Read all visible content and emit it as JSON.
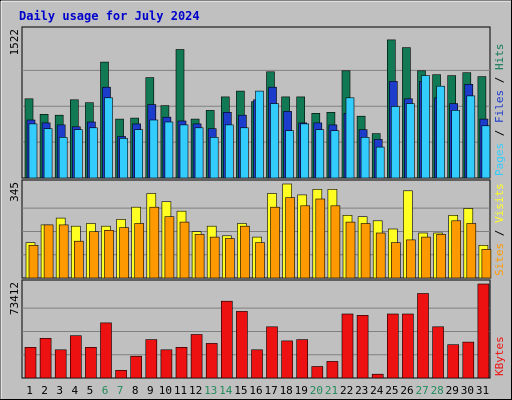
{
  "title": "Daily usage for July 2024",
  "colors": {
    "background": "#c0c0c0",
    "panel": "#c0c0c0",
    "grid": "#808080",
    "hits": "#117a55",
    "files": "#1c3ccc",
    "pages": "#33ccff",
    "visits": "#ffff22",
    "sites": "#ff9900",
    "kbytes": "#ee1111",
    "title": "#0000cc",
    "weekend": "#228b5a",
    "tick": "#000000"
  },
  "chart_data": [
    {
      "type": "bar",
      "panel": "hits-files-pages",
      "ymax_label": "1522",
      "ylim": [
        0,
        1522
      ],
      "categories": [
        "1",
        "2",
        "3",
        "4",
        "5",
        "6",
        "7",
        "8",
        "9",
        "10",
        "11",
        "12",
        "13",
        "14",
        "15",
        "16",
        "17",
        "18",
        "19",
        "20",
        "21",
        "22",
        "23",
        "24",
        "25",
        "26",
        "27",
        "28",
        "29",
        "30",
        "31"
      ],
      "legend": [
        "Pages",
        "Files",
        "Hits"
      ],
      "series": [
        {
          "name": "Hits",
          "values": [
            820,
            660,
            650,
            810,
            780,
            1200,
            610,
            620,
            1040,
            750,
            1330,
            610,
            700,
            840,
            900,
            790,
            1100,
            840,
            840,
            670,
            680,
            1110,
            640,
            460,
            1430,
            1350,
            1110,
            1070,
            1060,
            1090,
            1050
          ]
        },
        {
          "name": "Files",
          "values": [
            600,
            570,
            550,
            530,
            580,
            940,
            430,
            560,
            760,
            630,
            590,
            560,
            510,
            680,
            650,
            810,
            940,
            690,
            570,
            570,
            550,
            670,
            500,
            400,
            1000,
            820,
            1000,
            830,
            770,
            970,
            610
          ]
        },
        {
          "name": "Pages",
          "values": [
            560,
            510,
            420,
            500,
            520,
            830,
            410,
            500,
            600,
            580,
            550,
            520,
            420,
            550,
            520,
            900,
            770,
            490,
            560,
            500,
            490,
            830,
            420,
            320,
            740,
            770,
            1060,
            950,
            700,
            850,
            540
          ]
        }
      ]
    },
    {
      "type": "bar",
      "panel": "visits-sites",
      "ymax_label": "345",
      "ylim": [
        0,
        345
      ],
      "categories": [
        "1",
        "2",
        "3",
        "4",
        "5",
        "6",
        "7",
        "8",
        "9",
        "10",
        "11",
        "12",
        "13",
        "14",
        "15",
        "16",
        "17",
        "18",
        "19",
        "20",
        "21",
        "22",
        "23",
        "24",
        "25",
        "26",
        "27",
        "28",
        "29",
        "30",
        "31"
      ],
      "legend": [
        "Sites",
        "Visits"
      ],
      "series": [
        {
          "name": "Visits",
          "values": [
            130,
            195,
            220,
            190,
            200,
            190,
            215,
            260,
            310,
            280,
            245,
            170,
            190,
            155,
            200,
            150,
            310,
            345,
            305,
            325,
            325,
            230,
            225,
            210,
            180,
            320,
            165,
            165,
            230,
            255,
            120
          ]
        },
        {
          "name": "Sites",
          "values": [
            120,
            195,
            195,
            135,
            170,
            175,
            185,
            200,
            260,
            225,
            205,
            160,
            150,
            145,
            190,
            130,
            260,
            295,
            265,
            290,
            265,
            205,
            200,
            165,
            130,
            140,
            150,
            160,
            210,
            200,
            105
          ]
        }
      ]
    },
    {
      "type": "bar",
      "panel": "kbytes",
      "ymax_label": "73412",
      "ylim": [
        0,
        73412
      ],
      "categories": [
        "1",
        "2",
        "3",
        "4",
        "5",
        "6",
        "7",
        "8",
        "9",
        "10",
        "11",
        "12",
        "13",
        "14",
        "15",
        "16",
        "17",
        "18",
        "19",
        "20",
        "21",
        "22",
        "23",
        "24",
        "25",
        "26",
        "27",
        "28",
        "29",
        "30",
        "31"
      ],
      "legend": [
        "KBytes"
      ],
      "series": [
        {
          "name": "KBytes",
          "values": [
            24000,
            31000,
            22000,
            33000,
            24000,
            43000,
            6000,
            17000,
            30000,
            22000,
            24000,
            34000,
            27000,
            60000,
            52000,
            22000,
            40000,
            29000,
            30000,
            9000,
            13000,
            50000,
            49000,
            3000,
            50000,
            50000,
            66000,
            40000,
            26000,
            28000,
            73412
          ]
        }
      ]
    }
  ],
  "x_labels": [
    "1",
    "2",
    "3",
    "4",
    "5",
    "6",
    "7",
    "8",
    "9",
    "10",
    "11",
    "12",
    "13",
    "14",
    "15",
    "16",
    "17",
    "18",
    "19",
    "20",
    "21",
    "22",
    "23",
    "24",
    "25",
    "26",
    "27",
    "28",
    "29",
    "30",
    "31"
  ],
  "weekend_days": [
    "6",
    "7",
    "13",
    "14",
    "20",
    "21",
    "27",
    "28"
  ]
}
